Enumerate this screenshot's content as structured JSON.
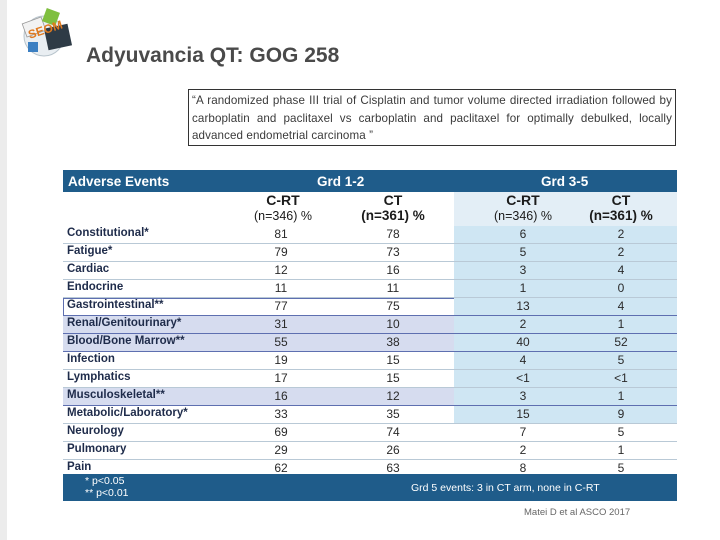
{
  "slide": {
    "title": "Adyuvancia QT: GOG 258",
    "quote": "“A randomized phase III trial of Cisplatin and tumor volume directed irradiation followed by carboplatin and paclitaxel vs carboplatin and paclitaxel for optimally debulked, locally advanced endometrial carcinoma ”",
    "citation": "Matei D et al ASCO 2017",
    "logo_text": "SEOM"
  },
  "table": {
    "header": {
      "col0": "Adverse Events",
      "grp1": "Grd 1-2",
      "grp2": "Grd 3-5"
    },
    "subheaders": [
      {
        "l1": "C-RT",
        "l2": "(n=346) %"
      },
      {
        "l1": "CT",
        "l2": "(n=361) %"
      },
      {
        "l1": "C-RT",
        "l2": "(n=346) %"
      },
      {
        "l1": "CT",
        "l2": "(n=361) %"
      }
    ],
    "rows": [
      {
        "label": "Constitutional*",
        "v": [
          "81",
          "78",
          "6",
          "2"
        ]
      },
      {
        "label": "Fatigue*",
        "v": [
          "79",
          "73",
          "5",
          "2"
        ]
      },
      {
        "label": "Cardiac",
        "v": [
          "12",
          "16",
          "3",
          "4"
        ]
      },
      {
        "label": "Endocrine",
        "v": [
          "11",
          "11",
          "1",
          "0"
        ]
      },
      {
        "label": "Gastrointestinal**",
        "v": [
          "77",
          "75",
          "13",
          "4"
        ]
      },
      {
        "label": "Renal/Genitourinary*",
        "v": [
          "31",
          "10",
          "2",
          "1"
        ]
      },
      {
        "label": "Blood/Bone Marrow**",
        "v": [
          "55",
          "38",
          "40",
          "52"
        ]
      },
      {
        "label": "Infection",
        "v": [
          "19",
          "15",
          "4",
          "5"
        ]
      },
      {
        "label": "Lymphatics",
        "v": [
          "17",
          "15",
          "<1",
          "<1"
        ]
      },
      {
        "label": "Musculoskeletal**",
        "v": [
          "16",
          "12",
          "3",
          "1"
        ]
      },
      {
        "label": "Metabolic/Laboratory*",
        "v": [
          "33",
          "35",
          "15",
          "9"
        ]
      },
      {
        "label": "Neurology",
        "v": [
          "69",
          "74",
          "7",
          "5"
        ]
      },
      {
        "label": "Pulmonary",
        "v": [
          "29",
          "26",
          "2",
          "1"
        ]
      },
      {
        "label": "Pain",
        "v": [
          "62",
          "63",
          "8",
          "5"
        ]
      }
    ],
    "footer": {
      "note1": "*   p<0.05",
      "note2": "**  p<0.01",
      "note3": "Grd 5 events: 3 in CT arm, none in C-RT"
    }
  },
  "colors": {
    "header_blue": "#1f5c8a",
    "left_shade": "#d6dcef",
    "right_shade": "#cfe6f3",
    "box_outline": "#5e6fb0"
  }
}
